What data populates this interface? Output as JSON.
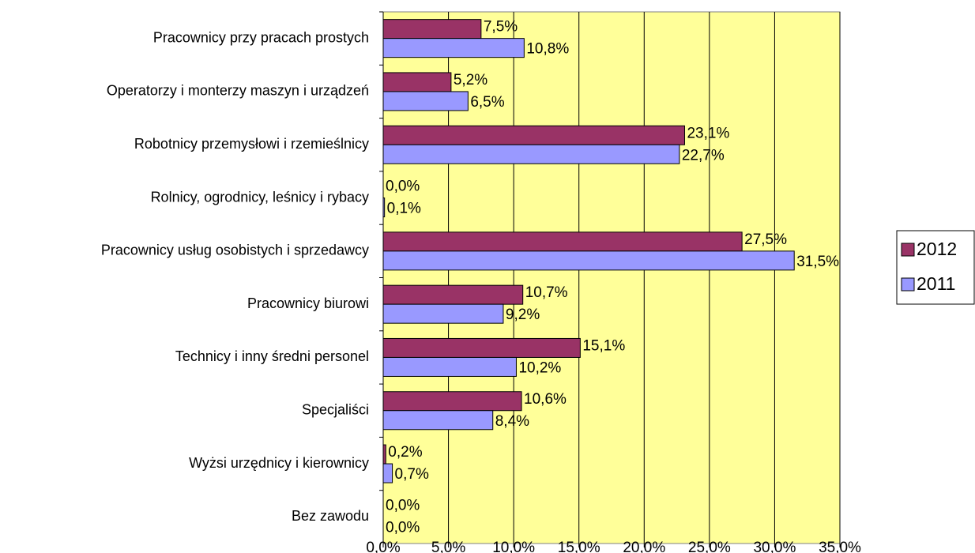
{
  "chart_data": {
    "type": "barh",
    "categories": [
      "Pracownicy przy pracach prostych",
      "Operatorzy i monterzy maszyn i urządzeń",
      "Robotnicy przemysłowi i rzemieślnicy",
      "Rolnicy, ogrodnicy, leśnicy i rybacy",
      "Pracownicy usług osobistych i sprzedawcy",
      "Pracownicy biurowi",
      "Technicy i inny średni personel",
      "Specjaliści",
      "Wyżsi urzędnicy i kierownicy",
      "Bez zawodu"
    ],
    "series": [
      {
        "name": "2012",
        "color": "#993366",
        "values": [
          7.5,
          5.2,
          23.1,
          0.0,
          27.5,
          10.7,
          15.1,
          10.6,
          0.2,
          0.0
        ],
        "value_labels": [
          "7,5%",
          "5,2%",
          "23,1%",
          "0,0%",
          "27,5%",
          "10,7%",
          "15,1%",
          "10,6%",
          "0,2%",
          "0,0%"
        ]
      },
      {
        "name": "2011",
        "color": "#9999ff",
        "values": [
          10.8,
          6.5,
          22.7,
          0.1,
          31.5,
          9.2,
          10.2,
          8.4,
          0.7,
          0.0
        ],
        "value_labels": [
          "10,8%",
          "6,5%",
          "22,7%",
          "0,1%",
          "31,5%",
          "9,2%",
          "10,2%",
          "8,4%",
          "0,7%",
          "0,0%"
        ]
      }
    ],
    "xlim": [
      0,
      35
    ],
    "xticks": [
      {
        "value": 0,
        "label": "0,0%"
      },
      {
        "value": 5,
        "label": "5,0%"
      },
      {
        "value": 10,
        "label": "10,0%"
      },
      {
        "value": 15,
        "label": "15,0%"
      },
      {
        "value": 20,
        "label": "20,0%"
      },
      {
        "value": 25,
        "label": "25,0%"
      },
      {
        "value": 30,
        "label": "30,0%"
      },
      {
        "value": 35,
        "label": "35,0%"
      }
    ],
    "grid": true,
    "plot_background": "#ffff99",
    "legend": "right"
  }
}
